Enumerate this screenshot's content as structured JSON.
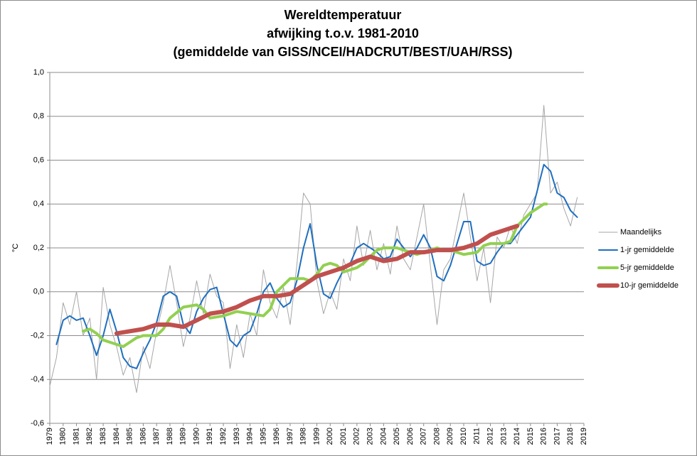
{
  "chart_data": {
    "type": "line",
    "title": [
      "Wereldtemperatuur",
      "afwijking t.o.v. 1981-2010",
      "(gemiddelde van GISS/NCEI/HADCRUT/BEST/UAH/RSS)"
    ],
    "y_label": "°C",
    "xlim": [
      1979,
      2019
    ],
    "xticks": [
      1979,
      1980,
      1981,
      1982,
      1983,
      1984,
      1985,
      1986,
      1987,
      1988,
      1989,
      1990,
      1991,
      1992,
      1993,
      1994,
      1995,
      1996,
      1997,
      1998,
      1999,
      2000,
      2001,
      2002,
      2003,
      2004,
      2005,
      2006,
      2007,
      2008,
      2009,
      2010,
      2011,
      2012,
      2013,
      2014,
      2015,
      2016,
      2017,
      2018,
      2019
    ],
    "ylim": [
      -0.6,
      1.0
    ],
    "yticks": [
      {
        "value": -0.6,
        "label": "-0,6"
      },
      {
        "value": -0.4,
        "label": "-0,4"
      },
      {
        "value": -0.2,
        "label": "-0,2"
      },
      {
        "value": 0,
        "label": "0,0"
      },
      {
        "value": 0.2,
        "label": "0,2"
      },
      {
        "value": 0.4,
        "label": "0,4"
      },
      {
        "value": 0.6,
        "label": "0,6"
      },
      {
        "value": 0.8,
        "label": "0,8"
      },
      {
        "value": 1.0,
        "label": "1,0"
      }
    ],
    "grid": true,
    "legend": "right",
    "series": [
      {
        "name": "Maandelijks",
        "color": "#a6a6a6",
        "x": [
          1979,
          1979.5,
          1980,
          1980.5,
          1981,
          1981.5,
          1982,
          1982.5,
          1983,
          1983.5,
          1984,
          1984.5,
          1985,
          1985.5,
          1986,
          1986.5,
          1987,
          1987.5,
          1988,
          1988.5,
          1989,
          1989.5,
          1990,
          1990.5,
          1991,
          1991.5,
          1992,
          1992.5,
          1993,
          1993.5,
          1994,
          1994.5,
          1995,
          1995.5,
          1996,
          1996.5,
          1997,
          1997.5,
          1998,
          1998.5,
          1999,
          1999.5,
          2000,
          2000.5,
          2001,
          2001.5,
          2002,
          2002.5,
          2003,
          2003.5,
          2004,
          2004.5,
          2005,
          2005.5,
          2006,
          2006.5,
          2007,
          2007.5,
          2008,
          2008.5,
          2009,
          2009.5,
          2010,
          2010.5,
          2011,
          2011.5,
          2012,
          2012.5,
          2013,
          2013.5,
          2014,
          2014.5,
          2015,
          2015.5,
          2016,
          2016.5,
          2017,
          2017.5,
          2018,
          2018.5
        ],
        "values": [
          -0.43,
          -0.3,
          -0.05,
          -0.15,
          0.0,
          -0.2,
          -0.12,
          -0.4,
          0.02,
          -0.15,
          -0.25,
          -0.38,
          -0.3,
          -0.46,
          -0.25,
          -0.35,
          -0.18,
          -0.05,
          0.12,
          -0.05,
          -0.25,
          -0.12,
          0.05,
          -0.1,
          0.08,
          -0.02,
          -0.05,
          -0.35,
          -0.15,
          -0.3,
          -0.1,
          -0.2,
          0.1,
          -0.05,
          -0.12,
          0.02,
          -0.15,
          0.12,
          0.45,
          0.4,
          0.05,
          -0.1,
          0.0,
          -0.08,
          0.15,
          0.05,
          0.3,
          0.12,
          0.28,
          0.1,
          0.22,
          0.08,
          0.3,
          0.15,
          0.1,
          0.25,
          0.4,
          0.12,
          -0.15,
          0.1,
          0.15,
          0.3,
          0.45,
          0.25,
          0.05,
          0.2,
          -0.05,
          0.25,
          0.2,
          0.3,
          0.22,
          0.35,
          0.4,
          0.45,
          0.85,
          0.45,
          0.5,
          0.38,
          0.3,
          0.43
        ]
      },
      {
        "name": "1-jr gemiddelde",
        "color": "#1f6fc0",
        "x": [
          1979.5,
          1980,
          1980.5,
          1981,
          1981.5,
          1982,
          1982.5,
          1983,
          1983.5,
          1984,
          1984.5,
          1985,
          1985.5,
          1986,
          1986.5,
          1987,
          1987.5,
          1988,
          1988.5,
          1989,
          1989.5,
          1990,
          1990.5,
          1991,
          1991.5,
          1992,
          1992.5,
          1993,
          1993.5,
          1994,
          1994.5,
          1995,
          1995.5,
          1996,
          1996.5,
          1997,
          1997.5,
          1998,
          1998.5,
          1999,
          1999.5,
          2000,
          2000.5,
          2001,
          2001.5,
          2002,
          2002.5,
          2003,
          2003.5,
          2004,
          2004.5,
          2005,
          2005.5,
          2006,
          2006.5,
          2007,
          2007.5,
          2008,
          2008.5,
          2009,
          2009.5,
          2010,
          2010.5,
          2011,
          2011.5,
          2012,
          2012.5,
          2013,
          2013.5,
          2014,
          2014.5,
          2015,
          2015.5,
          2016,
          2016.5,
          2017,
          2017.5,
          2018,
          2018.5
        ],
        "values": [
          -0.24,
          -0.13,
          -0.11,
          -0.13,
          -0.12,
          -0.2,
          -0.29,
          -0.2,
          -0.08,
          -0.18,
          -0.3,
          -0.34,
          -0.35,
          -0.28,
          -0.22,
          -0.14,
          -0.02,
          0.0,
          -0.02,
          -0.15,
          -0.19,
          -0.09,
          -0.03,
          0.01,
          0.02,
          -0.1,
          -0.22,
          -0.25,
          -0.2,
          -0.18,
          -0.1,
          0.0,
          0.04,
          -0.03,
          -0.07,
          -0.05,
          0.05,
          0.2,
          0.31,
          0.12,
          -0.01,
          -0.03,
          0.04,
          0.1,
          0.13,
          0.2,
          0.22,
          0.2,
          0.18,
          0.15,
          0.16,
          0.24,
          0.2,
          0.16,
          0.2,
          0.26,
          0.2,
          0.07,
          0.05,
          0.12,
          0.22,
          0.32,
          0.32,
          0.14,
          0.12,
          0.13,
          0.18,
          0.22,
          0.22,
          0.26,
          0.3,
          0.34,
          0.46,
          0.58,
          0.55,
          0.45,
          0.43,
          0.37,
          0.34
        ]
      },
      {
        "name": "5-jr gemiddelde",
        "color": "#92d050",
        "x": [
          1981.5,
          1982,
          1982.5,
          1983,
          1984,
          1984.5,
          1985,
          1985.5,
          1986,
          1987,
          1987.5,
          1988,
          1989,
          1990,
          1990.5,
          1991,
          1992,
          1993,
          1994,
          1995,
          1995.5,
          1996,
          1996.5,
          1997,
          1998,
          1998.5,
          1999,
          1999.5,
          2000,
          2000.5,
          2001,
          2002,
          2002.5,
          2003,
          2003.5,
          2004,
          2005,
          2006,
          2006.5,
          2007,
          2008,
          2008.5,
          2009,
          2009.5,
          2010,
          2011,
          2011.5,
          2012,
          2013,
          2013.5,
          2014,
          2014.5,
          2015,
          2015.5,
          2016,
          2016.2
        ],
        "values": [
          -0.18,
          -0.17,
          -0.19,
          -0.22,
          -0.24,
          -0.25,
          -0.23,
          -0.21,
          -0.2,
          -0.2,
          -0.17,
          -0.12,
          -0.07,
          -0.06,
          -0.08,
          -0.12,
          -0.11,
          -0.09,
          -0.1,
          -0.11,
          -0.08,
          0.0,
          0.03,
          0.06,
          0.06,
          0.05,
          0.08,
          0.12,
          0.13,
          0.12,
          0.09,
          0.11,
          0.13,
          0.16,
          0.19,
          0.2,
          0.2,
          0.18,
          0.17,
          0.18,
          0.2,
          0.19,
          0.19,
          0.18,
          0.17,
          0.18,
          0.21,
          0.22,
          0.22,
          0.23,
          0.3,
          0.33,
          0.36,
          0.38,
          0.4,
          0.4
        ]
      },
      {
        "name": "10-jr gemiddelde",
        "color": "#c0504d",
        "x": [
          1984,
          1985,
          1986,
          1987,
          1988,
          1989,
          1990,
          1991,
          1992,
          1993,
          1994,
          1995,
          1996,
          1997,
          1998,
          1999,
          2000,
          2001,
          2002,
          2003,
          2004,
          2005,
          2006,
          2007,
          2008,
          2009,
          2010,
          2011,
          2012,
          2013,
          2014
        ],
        "values": [
          -0.19,
          -0.18,
          -0.17,
          -0.15,
          -0.15,
          -0.16,
          -0.13,
          -0.1,
          -0.09,
          -0.07,
          -0.04,
          -0.02,
          -0.02,
          -0.01,
          0.03,
          0.07,
          0.09,
          0.11,
          0.14,
          0.16,
          0.14,
          0.15,
          0.18,
          0.18,
          0.19,
          0.19,
          0.2,
          0.22,
          0.26,
          0.28,
          0.3
        ]
      }
    ]
  }
}
